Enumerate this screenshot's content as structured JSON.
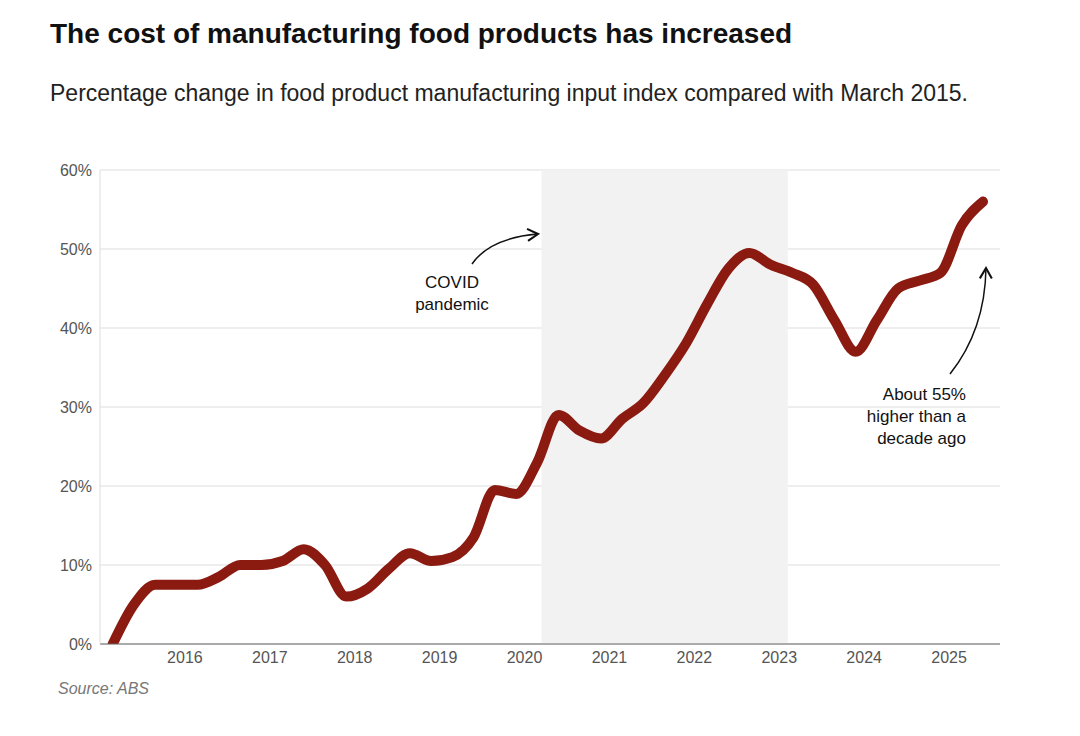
{
  "chart_data": {
    "type": "line",
    "title": "The cost of manufacturing food products has increased",
    "subtitle": "Percentage change in food product manufacturing input index compared with March 2015.",
    "source": "Source: ABS",
    "x": [
      2015.15,
      2015.4,
      2015.65,
      2015.9,
      2016.15,
      2016.4,
      2016.65,
      2016.9,
      2017.15,
      2017.4,
      2017.65,
      2017.9,
      2018.15,
      2018.4,
      2018.65,
      2018.9,
      2019.15,
      2019.4,
      2019.65,
      2019.9,
      2020.15,
      2020.4,
      2020.65,
      2020.9,
      2021.15,
      2021.4,
      2021.65,
      2021.9,
      2022.15,
      2022.4,
      2022.65,
      2022.9,
      2023.15,
      2023.4,
      2023.65,
      2023.9,
      2024.15,
      2024.4,
      2024.65,
      2024.9,
      2025.15,
      2025.4
    ],
    "values": [
      0,
      5,
      7.5,
      7.5,
      7.5,
      8.5,
      10,
      10,
      10.5,
      12,
      10,
      6,
      7,
      9.5,
      11.5,
      10.5,
      11,
      13.5,
      19.5,
      19,
      23,
      29,
      27,
      26,
      28.5,
      30.5,
      34,
      38,
      43,
      47.5,
      49.5,
      48,
      47,
      45.5,
      41,
      37,
      41,
      45,
      46,
      47,
      53,
      56
    ],
    "color": "#8b1a10",
    "xlim": [
      2015,
      2025.6
    ],
    "xticks": [
      2016,
      2017,
      2018,
      2019,
      2020,
      2021,
      2022,
      2023,
      2024,
      2025
    ],
    "ylim": [
      0,
      60
    ],
    "yticks": [
      {
        "value": 0,
        "label": "0%"
      },
      {
        "value": 10,
        "label": "10%"
      },
      {
        "value": 20,
        "label": "20%"
      },
      {
        "value": 30,
        "label": "30%"
      },
      {
        "value": 40,
        "label": "40%"
      },
      {
        "value": 50,
        "label": "50%"
      },
      {
        "value": 60,
        "label": "60%"
      }
    ],
    "grid": true,
    "shaded_region": {
      "x": [
        2020.2,
        2023.1
      ],
      "label": "COVID pandemic"
    },
    "annotations": [
      {
        "text": "About 55% higher than a decade ago"
      }
    ]
  }
}
